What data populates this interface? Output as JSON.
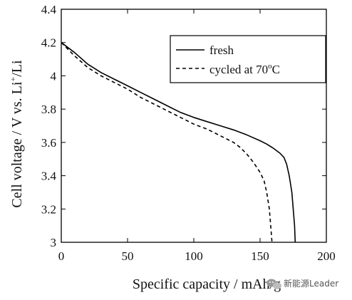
{
  "chart_data": {
    "type": "line",
    "xlabel": "Specific capacity / mAh/g",
    "ylabel_main": "Cell voltage / V vs. Li",
    "ylabel_sup": "+",
    "ylabel_tail": "/Li",
    "xlim": [
      0,
      200
    ],
    "ylim": [
      3,
      4.4
    ],
    "x_ticks": [
      0,
      50,
      100,
      150,
      200
    ],
    "x_tick_labels": [
      "0",
      "50",
      "100",
      "150",
      "200"
    ],
    "y_ticks": [
      3,
      3.2,
      3.4,
      3.6,
      3.8,
      4,
      4.2,
      4.4
    ],
    "y_tick_labels": [
      "3",
      "3.2",
      "3.4",
      "3.6",
      "3.8",
      "4",
      "4.2",
      "4.4"
    ],
    "grid": false,
    "legend_position": "top-right",
    "series": [
      {
        "name": "fresh",
        "style": "solid",
        "color": "#000000",
        "points": [
          [
            0,
            4.2
          ],
          [
            10,
            4.14
          ],
          [
            20,
            4.07
          ],
          [
            30,
            4.02
          ],
          [
            40,
            3.98
          ],
          [
            50,
            3.94
          ],
          [
            60,
            3.9
          ],
          [
            70,
            3.86
          ],
          [
            80,
            3.82
          ],
          [
            90,
            3.78
          ],
          [
            100,
            3.75
          ],
          [
            110,
            3.725
          ],
          [
            120,
            3.7
          ],
          [
            130,
            3.675
          ],
          [
            140,
            3.645
          ],
          [
            150,
            3.61
          ],
          [
            155,
            3.59
          ],
          [
            160,
            3.565
          ],
          [
            165,
            3.535
          ],
          [
            168,
            3.51
          ],
          [
            170,
            3.47
          ],
          [
            172,
            3.4
          ],
          [
            174,
            3.3
          ],
          [
            175,
            3.2
          ],
          [
            176,
            3.1
          ],
          [
            176.5,
            3.0
          ]
        ]
      },
      {
        "name": "cycled at 70°C",
        "label_main": "cycled at 70",
        "label_sup": "o",
        "label_tail": "C",
        "style": "dashed",
        "color": "#000000",
        "points": [
          [
            0,
            4.2
          ],
          [
            10,
            4.12
          ],
          [
            20,
            4.05
          ],
          [
            30,
            4.0
          ],
          [
            40,
            3.96
          ],
          [
            50,
            3.92
          ],
          [
            60,
            3.87
          ],
          [
            70,
            3.83
          ],
          [
            80,
            3.79
          ],
          [
            90,
            3.75
          ],
          [
            100,
            3.71
          ],
          [
            110,
            3.68
          ],
          [
            120,
            3.64
          ],
          [
            130,
            3.6
          ],
          [
            135,
            3.57
          ],
          [
            140,
            3.53
          ],
          [
            145,
            3.48
          ],
          [
            150,
            3.42
          ],
          [
            153,
            3.37
          ],
          [
            155,
            3.3
          ],
          [
            157,
            3.2
          ],
          [
            158,
            3.1
          ],
          [
            159,
            3.0
          ]
        ]
      }
    ]
  },
  "watermark": {
    "text": "新能源Leader",
    "icon": "wechat-bubble-icon"
  }
}
